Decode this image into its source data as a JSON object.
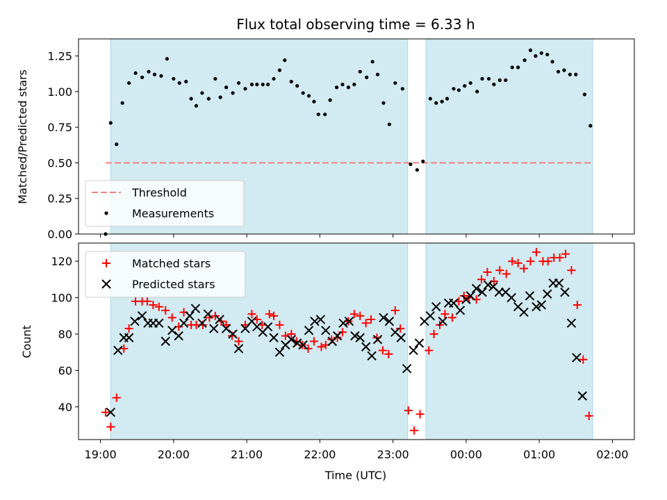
{
  "chart_data": {
    "title": "Flux total observing time = 6.33 h",
    "xlabel": "Time (UTC)",
    "x_ticks": [
      "19:00",
      "20:00",
      "21:00",
      "22:00",
      "23:00",
      "00:00",
      "01:00",
      "02:00"
    ],
    "x_tick_hours": [
      19,
      20,
      21,
      22,
      23,
      24,
      25,
      26
    ],
    "x_range_hours": [
      18.7,
      26.3
    ],
    "observing_windows_hours": [
      [
        19.14,
        23.2
      ],
      [
        23.45,
        25.73
      ]
    ],
    "colors": {
      "window": "#add8e6",
      "threshold": "#f08080",
      "measurement": "#000000",
      "matched": "#ff0000",
      "predicted": "#000000"
    },
    "top": {
      "type": "scatter",
      "ylabel": "Matched/Predicted stars",
      "ylim": [
        0,
        1.37
      ],
      "y_ticks": [
        "0.00",
        "0.25",
        "0.50",
        "0.75",
        "1.00",
        "1.25"
      ],
      "y_tick_values": [
        0,
        0.25,
        0.5,
        0.75,
        1.0,
        1.25
      ],
      "threshold": {
        "value": 0.5,
        "x_range_hours": [
          19.07,
          25.73
        ]
      },
      "legend": {
        "placement": "lower-left",
        "threshold_label": "Threshold",
        "measurements_label": "Measurements"
      },
      "measurements": [
        [
          19.07,
          0.0
        ],
        [
          19.14,
          0.78
        ],
        [
          19.22,
          0.63
        ],
        [
          19.3,
          0.92
        ],
        [
          19.39,
          1.06
        ],
        [
          19.48,
          1.13
        ],
        [
          19.57,
          1.1
        ],
        [
          19.66,
          1.14
        ],
        [
          19.74,
          1.12
        ],
        [
          19.83,
          1.11
        ],
        [
          19.91,
          1.23
        ],
        [
          20.0,
          1.09
        ],
        [
          20.08,
          1.06
        ],
        [
          20.17,
          1.07
        ],
        [
          20.24,
          0.95
        ],
        [
          20.31,
          0.9
        ],
        [
          20.39,
          0.99
        ],
        [
          20.48,
          0.95
        ],
        [
          20.57,
          1.09
        ],
        [
          20.64,
          0.96
        ],
        [
          20.72,
          1.03
        ],
        [
          20.81,
          0.99
        ],
        [
          20.89,
          1.06
        ],
        [
          20.98,
          1.02
        ],
        [
          21.07,
          1.05
        ],
        [
          21.14,
          1.05
        ],
        [
          21.22,
          1.05
        ],
        [
          21.29,
          1.05
        ],
        [
          21.37,
          1.09
        ],
        [
          21.45,
          1.15
        ],
        [
          21.52,
          1.22
        ],
        [
          21.61,
          1.07
        ],
        [
          21.69,
          1.04
        ],
        [
          21.77,
          0.99
        ],
        [
          21.85,
          0.97
        ],
        [
          21.92,
          0.93
        ],
        [
          21.98,
          0.84
        ],
        [
          22.07,
          0.84
        ],
        [
          22.14,
          0.94
        ],
        [
          22.23,
          1.03
        ],
        [
          22.31,
          1.05
        ],
        [
          22.39,
          1.03
        ],
        [
          22.47,
          1.05
        ],
        [
          22.55,
          1.14
        ],
        [
          22.64,
          1.1
        ],
        [
          22.72,
          1.21
        ],
        [
          22.79,
          1.12
        ],
        [
          22.87,
          0.92
        ],
        [
          22.95,
          0.77
        ],
        [
          23.03,
          1.06
        ],
        [
          23.13,
          1.02
        ],
        [
          23.24,
          0.49
        ],
        [
          23.33,
          0.45
        ],
        [
          23.41,
          0.51
        ],
        [
          23.51,
          0.95
        ],
        [
          23.59,
          0.92
        ],
        [
          23.67,
          0.93
        ],
        [
          23.74,
          0.95
        ],
        [
          23.83,
          1.02
        ],
        [
          23.9,
          1.01
        ],
        [
          23.98,
          1.04
        ],
        [
          24.06,
          1.06
        ],
        [
          24.15,
          1.0
        ],
        [
          24.22,
          1.09
        ],
        [
          24.31,
          1.09
        ],
        [
          24.38,
          1.05
        ],
        [
          24.46,
          1.08
        ],
        [
          24.54,
          1.08
        ],
        [
          24.63,
          1.17
        ],
        [
          24.71,
          1.17
        ],
        [
          24.8,
          1.22
        ],
        [
          24.88,
          1.29
        ],
        [
          24.95,
          1.25
        ],
        [
          25.03,
          1.27
        ],
        [
          25.11,
          1.26
        ],
        [
          25.18,
          1.21
        ],
        [
          25.26,
          1.14
        ],
        [
          25.34,
          1.15
        ],
        [
          25.42,
          1.12
        ],
        [
          25.5,
          1.12
        ],
        [
          25.62,
          0.98
        ],
        [
          25.7,
          0.76
        ]
      ]
    },
    "bottom": {
      "type": "scatter",
      "ylabel": "Count",
      "ylim": [
        22,
        130
      ],
      "y_ticks": [
        "40",
        "60",
        "80",
        "100",
        "120"
      ],
      "y_tick_values": [
        40,
        60,
        80,
        100,
        120
      ],
      "legend": {
        "placement": "upper-left",
        "matched_label": "Matched stars",
        "predicted_label": "Predicted stars"
      },
      "matched": [
        [
          19.07,
          37
        ],
        [
          19.14,
          29
        ],
        [
          19.22,
          45
        ],
        [
          19.32,
          72
        ],
        [
          19.39,
          83
        ],
        [
          19.48,
          98
        ],
        [
          19.57,
          98
        ],
        [
          19.64,
          98
        ],
        [
          19.72,
          96
        ],
        [
          19.8,
          95
        ],
        [
          19.89,
          93
        ],
        [
          19.98,
          89
        ],
        [
          20.07,
          84
        ],
        [
          20.14,
          92
        ],
        [
          20.24,
          85
        ],
        [
          20.31,
          85
        ],
        [
          20.4,
          85
        ],
        [
          20.49,
          89
        ],
        [
          20.57,
          90
        ],
        [
          20.65,
          87
        ],
        [
          20.72,
          85
        ],
        [
          20.8,
          79
        ],
        [
          20.89,
          76
        ],
        [
          20.98,
          85
        ],
        [
          21.07,
          91
        ],
        [
          21.14,
          88
        ],
        [
          21.21,
          85
        ],
        [
          21.31,
          91
        ],
        [
          21.37,
          90
        ],
        [
          21.45,
          85
        ],
        [
          21.53,
          79
        ],
        [
          21.61,
          80
        ],
        [
          21.68,
          76
        ],
        [
          21.76,
          74
        ],
        [
          21.84,
          72
        ],
        [
          21.92,
          76
        ],
        [
          22.02,
          73
        ],
        [
          22.08,
          74
        ],
        [
          22.16,
          77
        ],
        [
          22.24,
          78
        ],
        [
          22.31,
          81
        ],
        [
          22.39,
          87
        ],
        [
          22.47,
          91
        ],
        [
          22.55,
          90
        ],
        [
          22.63,
          86
        ],
        [
          22.7,
          88
        ],
        [
          22.78,
          78
        ],
        [
          22.86,
          71
        ],
        [
          22.94,
          69
        ],
        [
          23.03,
          93
        ],
        [
          23.1,
          83
        ],
        [
          23.21,
          38
        ],
        [
          23.29,
          27
        ],
        [
          23.37,
          36
        ],
        [
          23.49,
          71
        ],
        [
          23.56,
          80
        ],
        [
          23.64,
          85
        ],
        [
          23.71,
          91
        ],
        [
          23.81,
          89
        ],
        [
          23.9,
          98
        ],
        [
          23.97,
          101
        ],
        [
          24.04,
          100
        ],
        [
          24.14,
          99
        ],
        [
          24.21,
          110
        ],
        [
          24.29,
          114
        ],
        [
          24.38,
          109
        ],
        [
          24.46,
          115
        ],
        [
          24.55,
          113
        ],
        [
          24.63,
          120
        ],
        [
          24.71,
          119
        ],
        [
          24.79,
          116
        ],
        [
          24.88,
          120
        ],
        [
          24.96,
          125
        ],
        [
          25.05,
          120
        ],
        [
          25.12,
          120
        ],
        [
          25.2,
          122
        ],
        [
          25.28,
          122
        ],
        [
          25.36,
          124
        ],
        [
          25.44,
          115
        ],
        [
          25.52,
          96
        ],
        [
          25.6,
          66
        ],
        [
          25.68,
          35
        ]
      ],
      "predicted": [
        [
          19.14,
          37
        ],
        [
          19.24,
          71
        ],
        [
          19.32,
          78
        ],
        [
          19.39,
          78
        ],
        [
          19.47,
          87
        ],
        [
          19.57,
          90
        ],
        [
          19.65,
          86
        ],
        [
          19.72,
          86
        ],
        [
          19.8,
          86
        ],
        [
          19.89,
          76
        ],
        [
          19.98,
          82
        ],
        [
          20.07,
          79
        ],
        [
          20.14,
          86
        ],
        [
          20.22,
          90
        ],
        [
          20.3,
          94
        ],
        [
          20.39,
          86
        ],
        [
          20.47,
          91
        ],
        [
          20.55,
          83
        ],
        [
          20.63,
          88
        ],
        [
          20.72,
          83
        ],
        [
          20.81,
          80
        ],
        [
          20.89,
          72
        ],
        [
          20.98,
          83
        ],
        [
          21.07,
          87
        ],
        [
          21.14,
          84
        ],
        [
          21.22,
          81
        ],
        [
          21.29,
          84
        ],
        [
          21.37,
          78
        ],
        [
          21.45,
          70
        ],
        [
          21.53,
          74
        ],
        [
          21.61,
          77
        ],
        [
          21.69,
          75
        ],
        [
          21.77,
          74
        ],
        [
          21.85,
          82
        ],
        [
          21.93,
          87
        ],
        [
          22.01,
          88
        ],
        [
          22.08,
          82
        ],
        [
          22.17,
          76
        ],
        [
          22.24,
          79
        ],
        [
          22.32,
          86
        ],
        [
          22.4,
          87
        ],
        [
          22.48,
          79
        ],
        [
          22.55,
          78
        ],
        [
          22.63,
          73
        ],
        [
          22.71,
          68
        ],
        [
          22.79,
          77
        ],
        [
          22.87,
          89
        ],
        [
          22.95,
          87
        ],
        [
          23.03,
          81
        ],
        [
          23.11,
          78
        ],
        [
          23.19,
          61
        ],
        [
          23.28,
          71
        ],
        [
          23.36,
          75
        ],
        [
          23.43,
          87
        ],
        [
          23.51,
          90
        ],
        [
          23.59,
          95
        ],
        [
          23.68,
          87
        ],
        [
          23.76,
          97
        ],
        [
          23.83,
          97
        ],
        [
          23.92,
          93
        ],
        [
          24.0,
          99
        ],
        [
          24.06,
          101
        ],
        [
          24.14,
          105
        ],
        [
          24.22,
          103
        ],
        [
          24.3,
          107
        ],
        [
          24.37,
          106
        ],
        [
          24.45,
          103
        ],
        [
          24.54,
          103
        ],
        [
          24.62,
          100
        ],
        [
          24.71,
          95
        ],
        [
          24.79,
          92
        ],
        [
          24.87,
          101
        ],
        [
          24.96,
          95
        ],
        [
          25.03,
          96
        ],
        [
          25.11,
          102
        ],
        [
          25.19,
          108
        ],
        [
          25.27,
          108
        ],
        [
          25.35,
          103
        ],
        [
          25.44,
          86
        ],
        [
          25.51,
          67
        ],
        [
          25.59,
          46
        ]
      ]
    }
  }
}
